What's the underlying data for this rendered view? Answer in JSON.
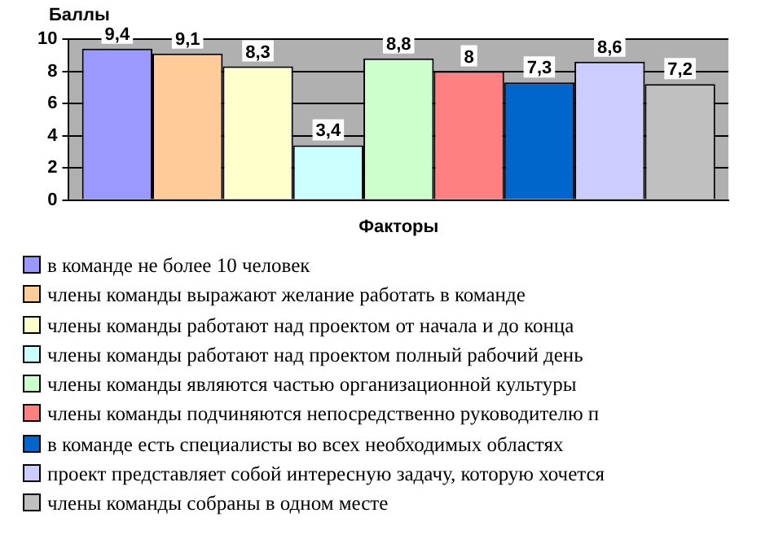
{
  "chart_data": {
    "type": "bar",
    "ylabel": "Баллы",
    "xlabel": "Факторы",
    "categories": [
      null
    ],
    "ylim": [
      0,
      10
    ],
    "yticks": [
      0,
      2,
      4,
      6,
      8,
      10
    ],
    "grid": "y",
    "legend": "bottom",
    "series": [
      {
        "name": "в команде не более 10 человек",
        "color": "#9999ff",
        "values": [
          9.4
        ],
        "value_labels": [
          "9,4"
        ]
      },
      {
        "name": "члены команды выражают желание работать в команде",
        "color": "#ffcc99",
        "values": [
          9.1
        ],
        "value_labels": [
          "9,1"
        ]
      },
      {
        "name": "члены команды работают над проектом от начала и до конца",
        "color": "#ffffcc",
        "values": [
          8.3
        ],
        "value_labels": [
          "8,3"
        ]
      },
      {
        "name": "члены команды работают над проектом полный рабочий день",
        "color": "#ccffff",
        "values": [
          3.4
        ],
        "value_labels": [
          "3,4"
        ]
      },
      {
        "name": "члены команды являются частью организационной культуры",
        "color": "#ccffcc",
        "values": [
          8.8
        ],
        "value_labels": [
          "8,8"
        ]
      },
      {
        "name": "члены команды подчиняются непосредственно руководителю п",
        "color": "#ff8080",
        "values": [
          8
        ],
        "value_labels": [
          "8"
        ]
      },
      {
        "name": "в команде есть специалисты во всех необходимых областях",
        "color": "#0066cc",
        "values": [
          7.3
        ],
        "value_labels": [
          "7,3"
        ]
      },
      {
        "name": "проект представляет собой интересную задачу, которую хочется",
        "color": "#ccccff",
        "values": [
          8.6
        ],
        "value_labels": [
          "8,6"
        ]
      },
      {
        "name": "члены команды собраны в одном месте",
        "color": "#c0c0c0",
        "values": [
          7.2
        ],
        "value_labels": [
          "7,2"
        ]
      }
    ]
  }
}
